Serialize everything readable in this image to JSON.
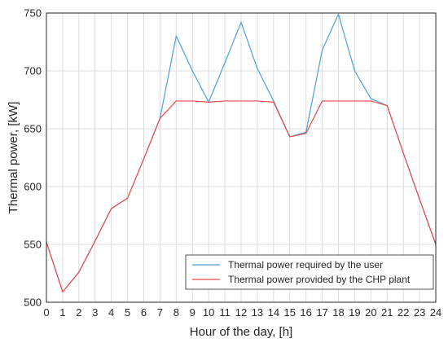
{
  "chart_data": {
    "type": "line",
    "xlabel": "Hour of the day, [h]",
    "ylabel": "Thermal power, [kW]",
    "xlim": [
      0,
      24
    ],
    "ylim": [
      500,
      750
    ],
    "xticks": [
      0,
      1,
      2,
      3,
      4,
      5,
      6,
      7,
      8,
      9,
      10,
      11,
      12,
      13,
      14,
      15,
      16,
      17,
      18,
      19,
      20,
      21,
      22,
      23,
      24
    ],
    "yticks": [
      500,
      550,
      600,
      650,
      700,
      750
    ],
    "grid": true,
    "legend_position": "bottom-right",
    "x": [
      0,
      1,
      2,
      3,
      4,
      5,
      6,
      7,
      8,
      9,
      10,
      11,
      12,
      13,
      14,
      15,
      16,
      17,
      18,
      19,
      20,
      21,
      22,
      23,
      24
    ],
    "series": [
      {
        "name": "Thermal power required by the user",
        "color": "#4A9FD8",
        "values": [
          552,
          509,
          526,
          553,
          581,
          590,
          624,
          659,
          730,
          700,
          673,
          707,
          742,
          702,
          674,
          643,
          647,
          718,
          749,
          700,
          676,
          670,
          629,
          589,
          550
        ]
      },
      {
        "name": "Thermal power provided by the CHP plant",
        "color": "#E84A4A",
        "values": [
          552,
          509,
          526,
          553,
          581,
          590,
          624,
          659,
          674,
          674,
          673,
          674,
          674,
          674,
          673,
          643,
          646,
          674,
          674,
          674,
          674,
          670,
          629,
          589,
          550
        ]
      }
    ]
  }
}
